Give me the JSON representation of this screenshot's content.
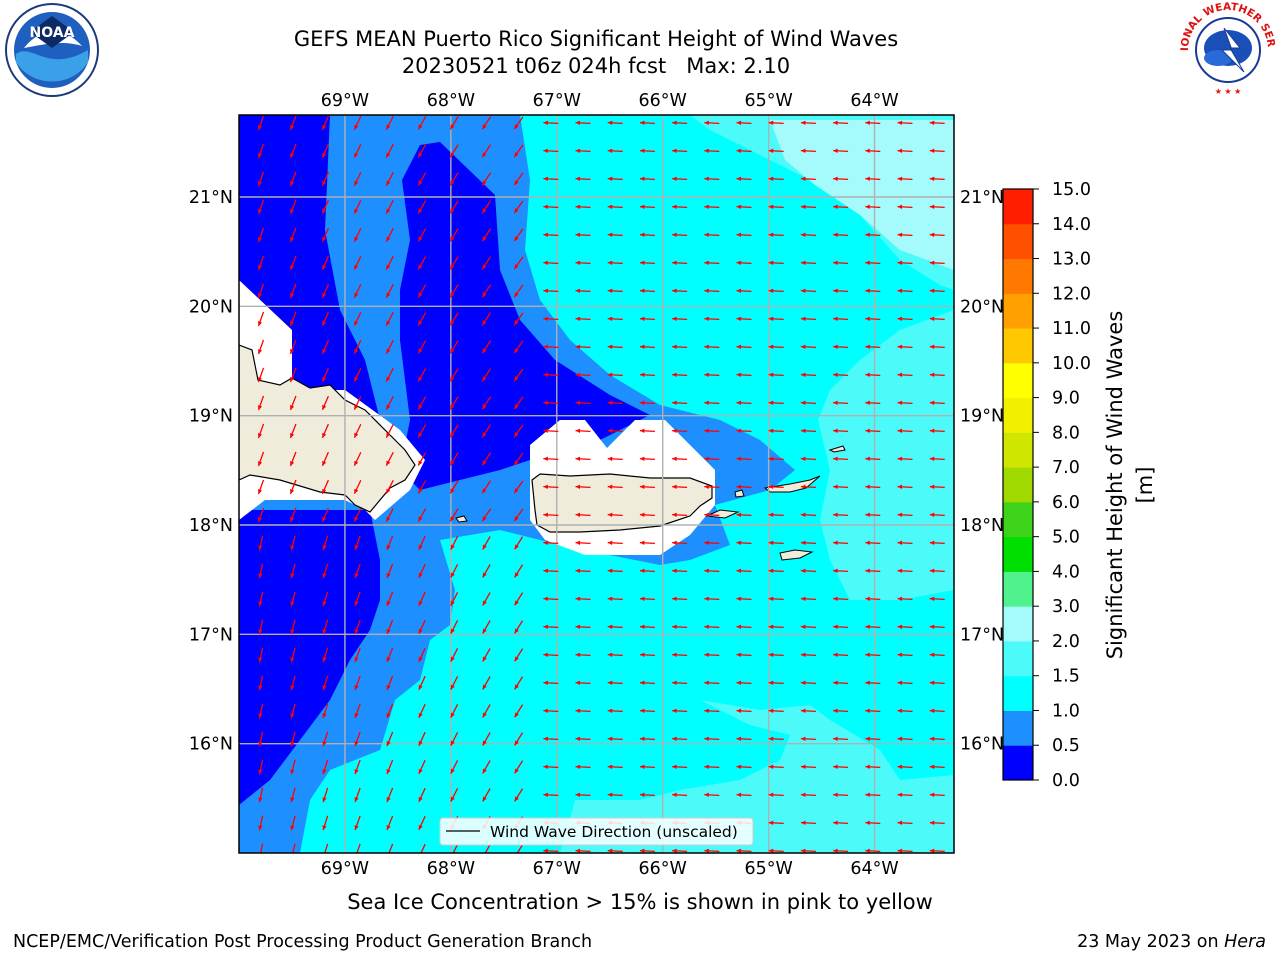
{
  "header": {
    "title_line1": "GEFS MEAN Puerto Rico Significant Height of Wind Waves",
    "title_line2": "20230521 t06z 024h fcst   Max: 2.10"
  },
  "logos": {
    "left": {
      "icon": "noaa-logo",
      "text": "NOAA"
    },
    "right": {
      "icon": "nws-logo",
      "text": "NATIONAL WEATHER SERVICE"
    }
  },
  "map": {
    "lon_ticks": [
      "69°W",
      "68°W",
      "67°W",
      "66°W",
      "65°W",
      "64°W"
    ],
    "lat_ticks": [
      "21°N",
      "20°N",
      "19°N",
      "18°N",
      "17°N",
      "16°N"
    ],
    "lon_values": [
      -69,
      -68,
      -67,
      -66,
      -65,
      -64
    ],
    "lat_values": [
      21,
      20,
      19,
      18,
      17,
      16
    ],
    "extent": {
      "lon_min": -70.0,
      "lon_max": -63.25,
      "lat_min": 15.0,
      "lat_max": 21.75
    },
    "legend_label": "Wind Wave Direction (unscaled)",
    "vector_color": "#ff0000",
    "land_color": "#efecdc",
    "grid_color": "#b0b0b0"
  },
  "colorbar": {
    "label": "Significant Height of Wind Waves [m]",
    "ticks": [
      "0.0",
      "0.5",
      "1.0",
      "1.5",
      "2.0",
      "3.0",
      "4.0",
      "5.0",
      "6.0",
      "7.0",
      "8.0",
      "9.0",
      "10.0",
      "11.0",
      "12.0",
      "13.0",
      "14.0",
      "15.0"
    ],
    "colors": [
      "#0000ff",
      "#1e8fff",
      "#00ffff",
      "#4dfafa",
      "#a5fbfb",
      "#4ff28d",
      "#00e000",
      "#3ed21b",
      "#a0d900",
      "#cfe600",
      "#f0f000",
      "#ffff00",
      "#ffc800",
      "#ffa000",
      "#ff7800",
      "#ff5000",
      "#ff1e00"
    ]
  },
  "footer": {
    "note": "Sea Ice Concentration > 15% is shown in pink to yellow",
    "credits_left": "NCEP/EMC/Verification Post Processing Product Generation Branch",
    "credits_date": "23 May 2023 on ",
    "credits_host": "Hera"
  }
}
